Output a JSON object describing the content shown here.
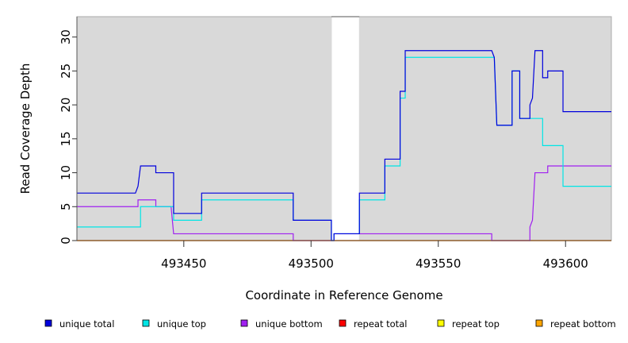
{
  "chart_data": {
    "type": "line",
    "step": true,
    "xlabel": "Coordinate in Reference Genome",
    "ylabel": "Read Coverage Depth",
    "xlim": [
      493408,
      493618
    ],
    "ylim": [
      0,
      33
    ],
    "xticks": [
      493450,
      493500,
      493550,
      493600
    ],
    "yticks": [
      0,
      5,
      10,
      15,
      20,
      25,
      30
    ],
    "plot_background": "#d9d9d9",
    "gaps": [
      [
        493508,
        493519
      ]
    ],
    "legend_position": "bottom",
    "series": [
      {
        "name": "unique total",
        "color": "#0000dd",
        "points": [
          [
            493408,
            7
          ],
          [
            493431,
            7
          ],
          [
            493432,
            8
          ],
          [
            493433,
            11
          ],
          [
            493439,
            11
          ],
          [
            493439,
            10
          ],
          [
            493446,
            10
          ],
          [
            493446,
            4
          ],
          [
            493457,
            4
          ],
          [
            493457,
            7
          ],
          [
            493493,
            7
          ],
          [
            493493,
            3
          ],
          [
            493508,
            3
          ],
          [
            493508,
            0
          ],
          [
            493509,
            0
          ],
          [
            493509,
            1
          ],
          [
            493519,
            1
          ],
          [
            493519,
            7
          ],
          [
            493529,
            7
          ],
          [
            493529,
            12
          ],
          [
            493535,
            12
          ],
          [
            493535,
            22
          ],
          [
            493537,
            22
          ],
          [
            493537,
            28
          ],
          [
            493571,
            28
          ],
          [
            493572,
            27
          ],
          [
            493573,
            17
          ],
          [
            493579,
            17
          ],
          [
            493579,
            25
          ],
          [
            493582,
            25
          ],
          [
            493582,
            18
          ],
          [
            493586,
            18
          ],
          [
            493586,
            20
          ],
          [
            493587,
            21
          ],
          [
            493588,
            28
          ],
          [
            493591,
            28
          ],
          [
            493591,
            24
          ],
          [
            493593,
            24
          ],
          [
            493593,
            25
          ],
          [
            493599,
            25
          ],
          [
            493599,
            19
          ],
          [
            493618,
            19
          ]
        ]
      },
      {
        "name": "unique top",
        "color": "#00e5e5",
        "points": [
          [
            493408,
            2
          ],
          [
            493433,
            2
          ],
          [
            493433,
            5
          ],
          [
            493446,
            5
          ],
          [
            493446,
            3
          ],
          [
            493457,
            3
          ],
          [
            493457,
            6
          ],
          [
            493493,
            6
          ],
          [
            493493,
            3
          ],
          [
            493508,
            3
          ],
          [
            493508,
            0
          ],
          [
            493509,
            0
          ],
          [
            493509,
            1
          ],
          [
            493519,
            1
          ],
          [
            493519,
            6
          ],
          [
            493529,
            6
          ],
          [
            493529,
            11
          ],
          [
            493535,
            11
          ],
          [
            493535,
            21
          ],
          [
            493537,
            21
          ],
          [
            493537,
            27
          ],
          [
            493571,
            27
          ],
          [
            493572,
            27
          ],
          [
            493573,
            17
          ],
          [
            493579,
            17
          ],
          [
            493579,
            25
          ],
          [
            493582,
            25
          ],
          [
            493582,
            18
          ],
          [
            493591,
            18
          ],
          [
            493591,
            14
          ],
          [
            493599,
            14
          ],
          [
            493599,
            8
          ],
          [
            493618,
            8
          ]
        ]
      },
      {
        "name": "unique bottom",
        "color": "#a020f0",
        "points": [
          [
            493408,
            5
          ],
          [
            493432,
            5
          ],
          [
            493432,
            6
          ],
          [
            493439,
            6
          ],
          [
            493439,
            5
          ],
          [
            493445,
            5
          ],
          [
            493446,
            1
          ],
          [
            493493,
            1
          ],
          [
            493493,
            0
          ],
          [
            493508,
            0
          ],
          [
            493509,
            0
          ],
          [
            493509,
            1
          ],
          [
            493519,
            1
          ],
          [
            493519,
            1
          ],
          [
            493571,
            1
          ],
          [
            493571,
            0
          ],
          [
            493586,
            0
          ],
          [
            493586,
            2
          ],
          [
            493587,
            3
          ],
          [
            493588,
            10
          ],
          [
            493593,
            10
          ],
          [
            493593,
            11
          ],
          [
            493618,
            11
          ]
        ]
      },
      {
        "name": "repeat total",
        "color": "#ff0000",
        "points": [
          [
            493408,
            0
          ],
          [
            493618,
            0
          ]
        ]
      },
      {
        "name": "repeat top",
        "color": "#ffff00",
        "points": [
          [
            493408,
            0
          ],
          [
            493618,
            0
          ]
        ]
      },
      {
        "name": "repeat bottom",
        "color": "#ffa500",
        "points": [
          [
            493408,
            0
          ],
          [
            493618,
            0
          ]
        ]
      }
    ]
  }
}
